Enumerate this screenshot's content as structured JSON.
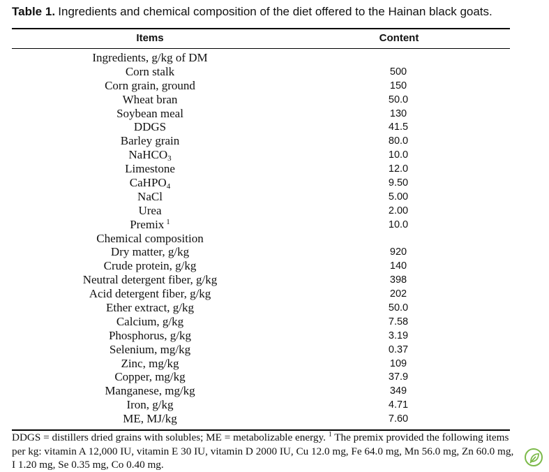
{
  "caption": {
    "label": "Table 1.",
    "text": "Ingredients and chemical composition of the diet offered to the Hainan black goats."
  },
  "headers": {
    "items": "Items",
    "content": "Content"
  },
  "rows": [
    {
      "item": "Ingredients, g/kg of DM",
      "value": ""
    },
    {
      "item": "Corn stalk",
      "value": "500"
    },
    {
      "item": "Corn grain, ground",
      "value": "150"
    },
    {
      "item": "Wheat bran",
      "value": "50.0"
    },
    {
      "item": "Soybean meal",
      "value": "130"
    },
    {
      "item": "DDGS",
      "value": "41.5"
    },
    {
      "item": "Barley grain",
      "value": "80.0"
    },
    {
      "item": "NaHCO",
      "sub": "3",
      "value": "10.0"
    },
    {
      "item": "Limestone",
      "value": "12.0"
    },
    {
      "item": "CaHPO",
      "sub": "4",
      "value": "9.50"
    },
    {
      "item": "NaCl",
      "value": "5.00"
    },
    {
      "item": "Urea",
      "value": "2.00"
    },
    {
      "item": "Premix",
      "sup": "1",
      "value": "10.0"
    },
    {
      "item": "Chemical composition",
      "value": ""
    },
    {
      "item": "Dry matter, g/kg",
      "value": "920"
    },
    {
      "item": "Crude protein, g/kg",
      "value": "140"
    },
    {
      "item": "Neutral detergent fiber, g/kg",
      "value": "398"
    },
    {
      "item": "Acid detergent fiber, g/kg",
      "value": "202"
    },
    {
      "item": "Ether extract, g/kg",
      "value": "50.0"
    },
    {
      "item": "Calcium, g/kg",
      "value": "7.58"
    },
    {
      "item": "Phosphorus, g/kg",
      "value": "3.19"
    },
    {
      "item": "Selenium, mg/kg",
      "value": "0.37"
    },
    {
      "item": "Zinc, mg/kg",
      "value": "109"
    },
    {
      "item": "Copper, mg/kg",
      "value": "37.9"
    },
    {
      "item": "Manganese, mg/kg",
      "value": "349"
    },
    {
      "item": "Iron, g/kg",
      "value": "4.71"
    },
    {
      "item": "ME, MJ/kg",
      "value": "7.60"
    }
  ],
  "footnote": {
    "part1": "DDGS = distillers dried grains with solubles; ME = metabolizable energy.",
    "marker": "1",
    "part2": "The premix provided the following items per kg: vitamin A 12,000 IU, vitamin E 30 IU, vitamin D 2000 IU, Cu 12.0 mg, Fe 64.0 mg, Mn 56.0 mg, Zn 60.0 mg, I 1.20 mg, Se 0.35 mg, Co 0.40 mg."
  },
  "badge": {
    "icon": "leaf-icon",
    "color": "#7cba4a"
  }
}
